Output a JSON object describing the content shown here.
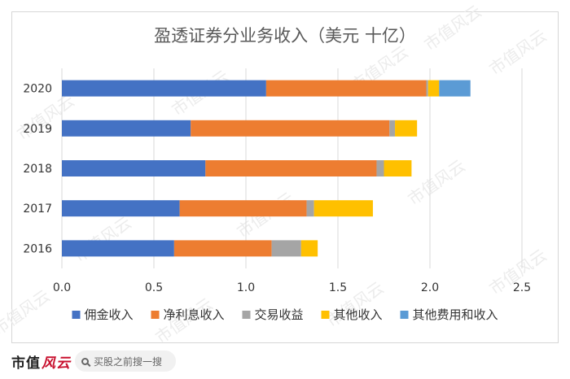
{
  "chart_data": {
    "type": "bar",
    "orientation": "horizontal",
    "stacked": true,
    "title": "盈透证券分业务收入（美元 十亿）",
    "categories": [
      "2020",
      "2019",
      "2018",
      "2017",
      "2016"
    ],
    "x_ticks": [
      "0.0",
      "0.5",
      "1.0",
      "1.5",
      "2.0",
      "2.5"
    ],
    "xlim": [
      0,
      2.5
    ],
    "grid": "vertical",
    "legend_position": "bottom",
    "series": [
      {
        "name": "佣金收入",
        "color": "#4472c4",
        "values": [
          1.11,
          0.7,
          0.78,
          0.64,
          0.61
        ]
      },
      {
        "name": "净利息收入",
        "color": "#ed7d31",
        "values": [
          0.87,
          1.08,
          0.93,
          0.69,
          0.53
        ]
      },
      {
        "name": "交易收益",
        "color": "#a5a5a5",
        "values": [
          0.01,
          0.03,
          0.04,
          0.04,
          0.16
        ]
      },
      {
        "name": "其他收入",
        "color": "#ffc000",
        "values": [
          0.06,
          0.12,
          0.15,
          0.32,
          0.09
        ]
      },
      {
        "name": "其他费用和收入",
        "color": "#5b9bd5",
        "values": [
          0.17,
          0.0,
          0.0,
          0.0,
          0.0
        ]
      }
    ]
  },
  "watermark": "市值风云",
  "footer": {
    "brand_a": "市值",
    "brand_b": "风云",
    "search_placeholder": "买股之前搜一搜"
  }
}
